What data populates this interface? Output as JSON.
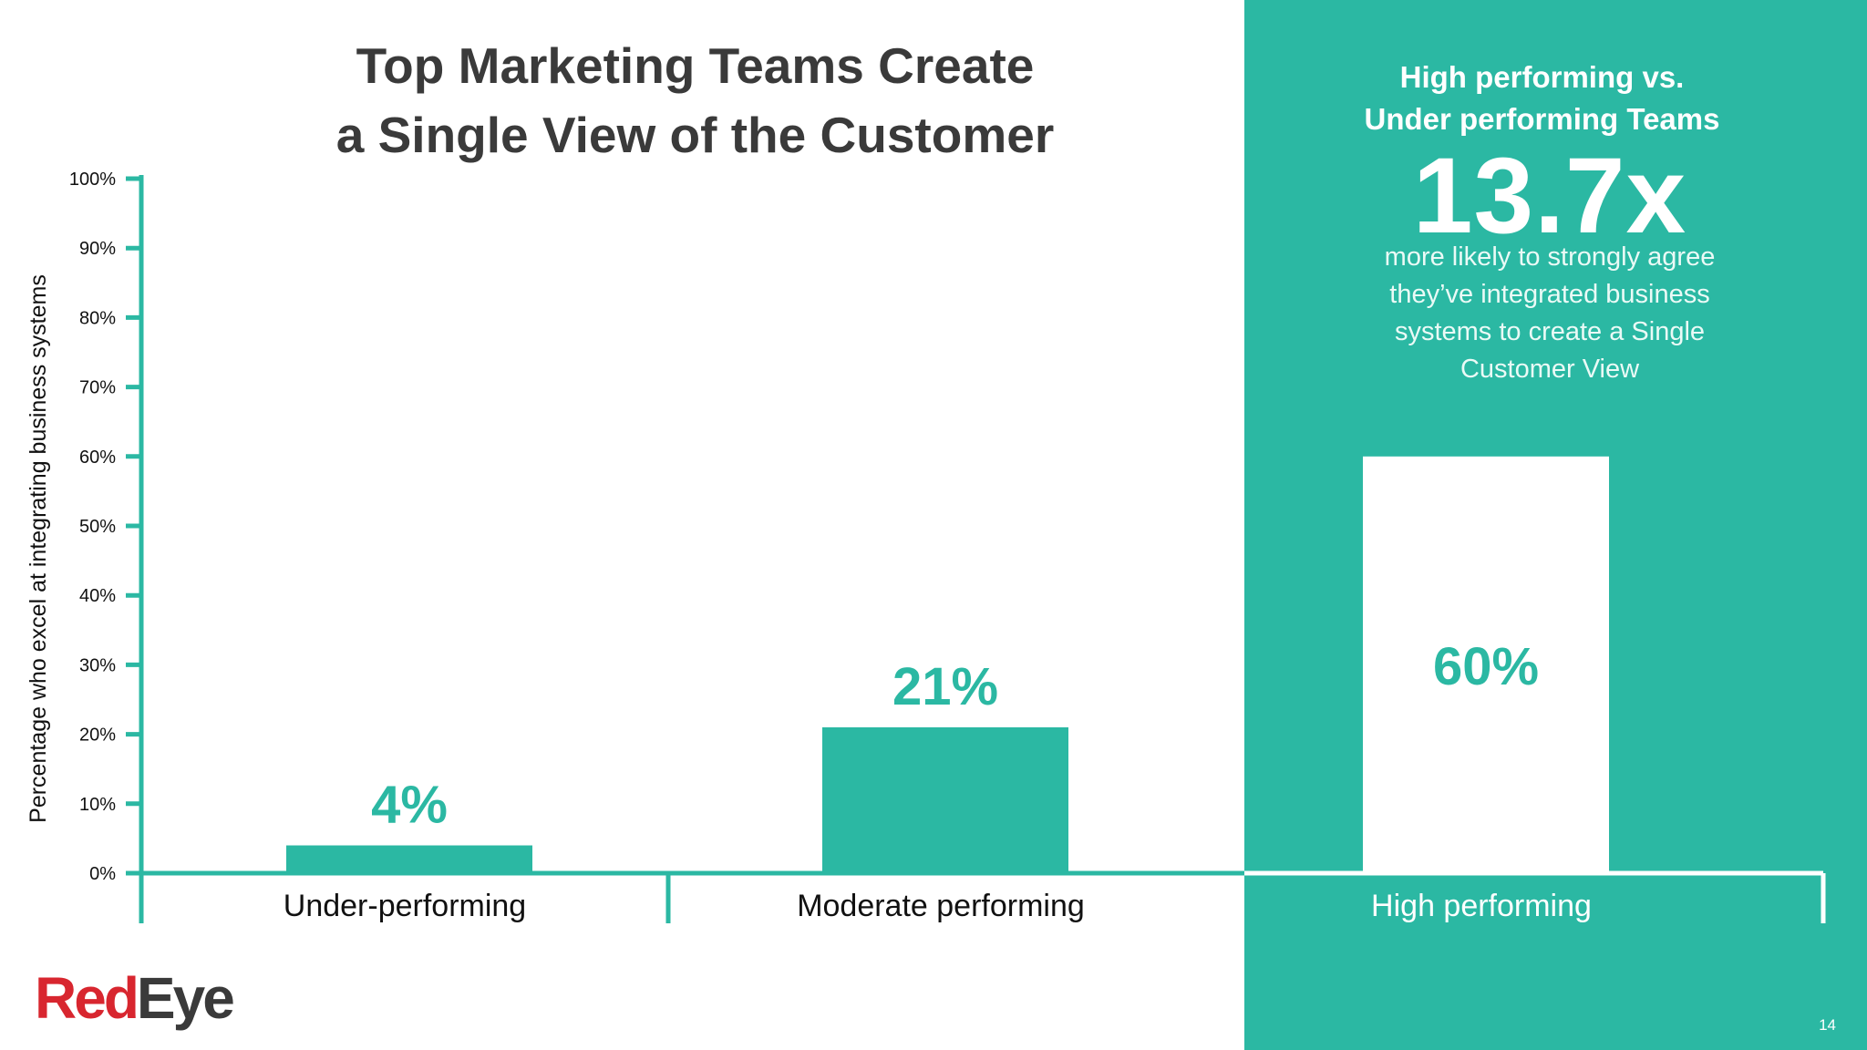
{
  "slide": {
    "title_lines": [
      "Top Marketing Teams Create",
      "a Single View of the Customer"
    ],
    "page_number": "14"
  },
  "callout": {
    "heading_lines": [
      "High performing vs.",
      "Under performing Teams"
    ],
    "stat": "13.7x",
    "description": "more likely to strongly agree they’ve integrated business systems to create a Single Customer View"
  },
  "logo": {
    "part1": "Red",
    "part2": "Eye"
  },
  "colors": {
    "accent": "#2bb8a3",
    "text_dark": "#3a3a3a",
    "white": "#ffffff",
    "logo_red": "#d8262f"
  },
  "chart_data": {
    "type": "bar",
    "title": "Top Marketing Teams Create a Single View of the Customer",
    "categories": [
      "Under-performing",
      "Moderate performing",
      "High performing"
    ],
    "values": [
      4,
      21,
      60
    ],
    "data_labels": [
      "4%",
      "21%",
      "60%"
    ],
    "xlabel": "",
    "ylabel": "Percentage who excel at integrating business systems",
    "ylim": [
      0,
      100
    ],
    "yticks": [
      0,
      10,
      20,
      30,
      40,
      50,
      60,
      70,
      80,
      90,
      100
    ],
    "ytick_labels": [
      "0%",
      "10%",
      "20%",
      "30%",
      "40%",
      "50%",
      "60%",
      "70%",
      "80%",
      "90%",
      "100%"
    ],
    "grid": false,
    "legend": "none"
  }
}
